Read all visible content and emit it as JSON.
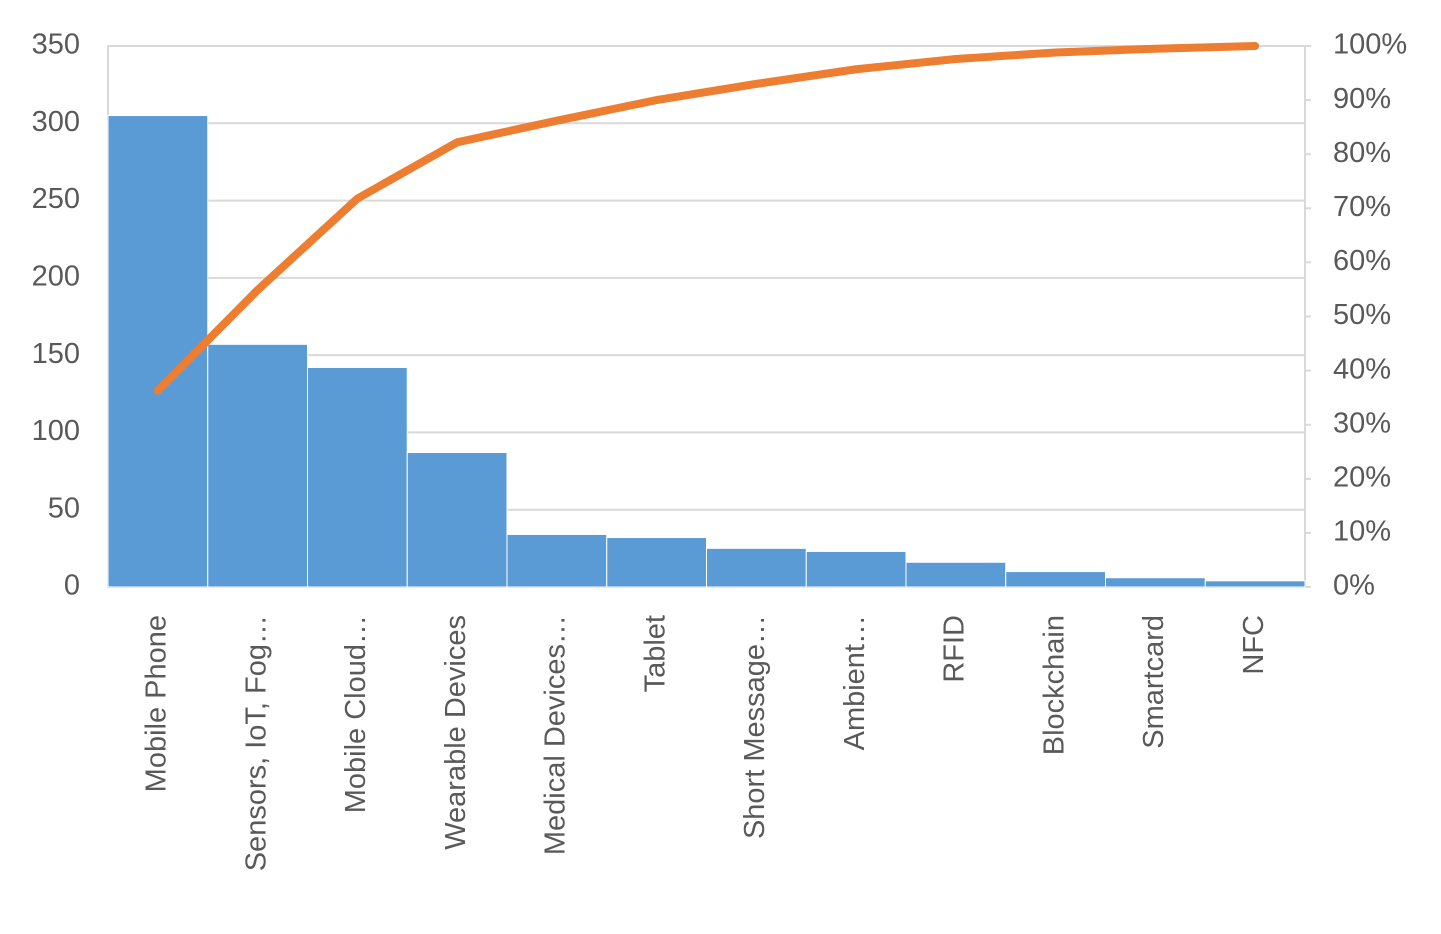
{
  "chart_data": {
    "type": "pareto",
    "categories": [
      "Mobile Phone",
      "Sensors, IoT, Fog…",
      "Mobile Cloud…",
      "Wearable Devices",
      "Medical Devices…",
      "Tablet",
      "Short Message…",
      "Ambient…",
      "RFID",
      "Blockchain",
      "Smartcard",
      "NFC"
    ],
    "series": [
      {
        "type": "bar",
        "color": "#5b9bd5",
        "values": [
          305,
          157,
          142,
          87,
          34,
          32,
          25,
          23,
          16,
          10,
          6,
          4
        ]
      },
      {
        "type": "line",
        "axis": "y2",
        "color": "#ed7d31",
        "values": [
          36.3,
          54.9,
          71.8,
          82.2,
          86.2,
          90.0,
          93.0,
          95.7,
          97.6,
          98.8,
          99.5,
          100
        ]
      }
    ],
    "ylim": [
      0,
      350
    ],
    "yticks": [
      0,
      50,
      100,
      150,
      200,
      250,
      300,
      350
    ],
    "y2lim": [
      0,
      100
    ],
    "y2ticks": [
      {
        "value": 0,
        "label": "0%"
      },
      {
        "value": 10,
        "label": "10%"
      },
      {
        "value": 20,
        "label": "20%"
      },
      {
        "value": 30,
        "label": "30%"
      },
      {
        "value": 40,
        "label": "40%"
      },
      {
        "value": 50,
        "label": "50%"
      },
      {
        "value": 60,
        "label": "60%"
      },
      {
        "value": 70,
        "label": "70%"
      },
      {
        "value": 80,
        "label": "80%"
      },
      {
        "value": 90,
        "label": "90%"
      },
      {
        "value": 100,
        "label": "100%"
      }
    ],
    "grid": true
  }
}
